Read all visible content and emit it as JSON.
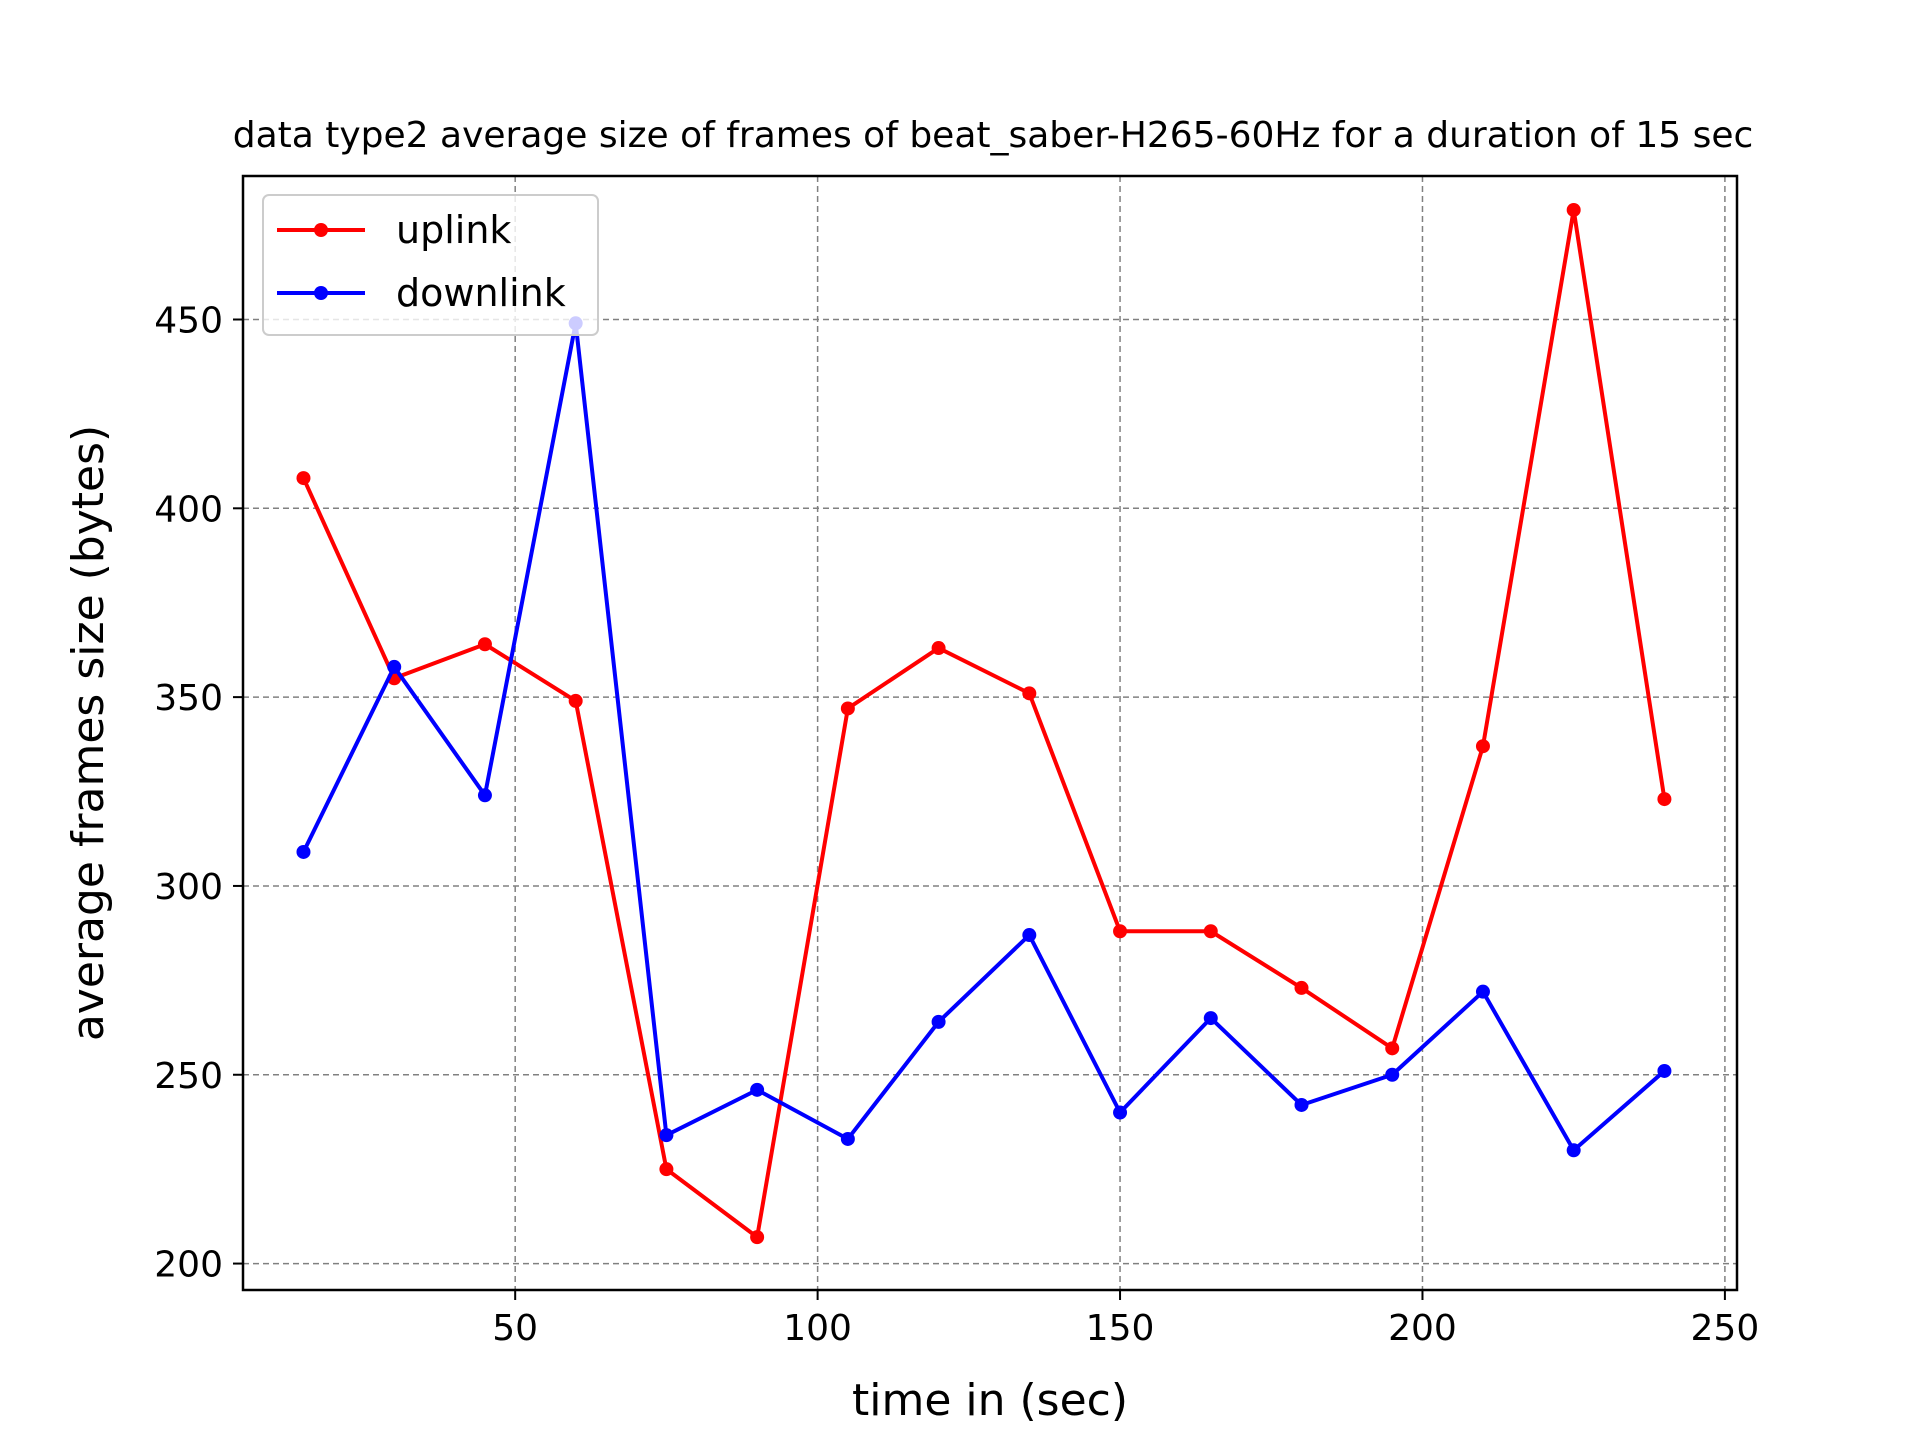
{
  "chart_data": {
    "type": "line",
    "title": "data type2 average size of frames of beat_saber-H265-60Hz for a duration of 15 sec",
    "xlabel": "time in (sec)",
    "ylabel": "average frames size (bytes)",
    "xlim": [
      5,
      252
    ],
    "ylim": [
      193,
      488
    ],
    "x_ticks": [
      50,
      100,
      150,
      200,
      250
    ],
    "y_ticks": [
      200,
      250,
      300,
      350,
      400,
      450
    ],
    "grid": true,
    "legend_position": "top-left",
    "x": [
      15,
      30,
      45,
      60,
      75,
      90,
      105,
      120,
      135,
      150,
      165,
      180,
      195,
      210,
      225,
      240
    ],
    "series": [
      {
        "name": "uplink",
        "color": "#ff0000",
        "values": [
          408,
          355,
          364,
          349,
          225,
          207,
          347,
          363,
          351,
          288,
          288,
          273,
          257,
          337,
          479,
          323
        ]
      },
      {
        "name": "downlink",
        "color": "#0000ff",
        "values": [
          309,
          358,
          324,
          449,
          234,
          246,
          233,
          264,
          287,
          240,
          265,
          242,
          250,
          272,
          230,
          251
        ]
      }
    ]
  }
}
